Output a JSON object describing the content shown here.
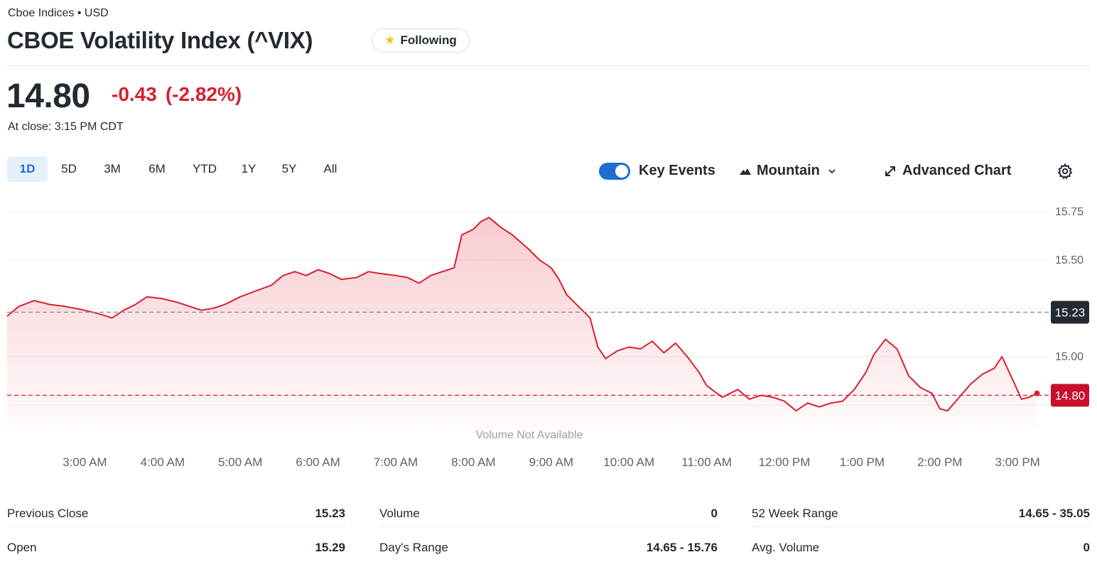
{
  "header": {
    "exchange": "Cboe Indices • USD",
    "title": "CBOE Volatility Index (^VIX)",
    "follow_label": "Following"
  },
  "quote": {
    "price": "14.80",
    "change": "-0.43",
    "change_pct": "(-2.82%)",
    "close_time": "At close: 3:15 PM CDT"
  },
  "range_tabs": [
    "1D",
    "5D",
    "3M",
    "6M",
    "YTD",
    "1Y",
    "5Y",
    "All"
  ],
  "active_range": "1D",
  "toolbar": {
    "key_events": "Key Events",
    "chart_type": "Mountain",
    "advanced": "Advanced Chart"
  },
  "colors": {
    "line": "#d6212f",
    "accent": "#1c6ed1",
    "prev_close_badge": "#232a31",
    "price_badge": "#c8102e"
  },
  "chart_data": {
    "type": "area",
    "x_ticks": [
      "3:00 AM",
      "4:00 AM",
      "5:00 AM",
      "6:00 AM",
      "7:00 AM",
      "8:00 AM",
      "9:00 AM",
      "10:00 AM",
      "11:00 AM",
      "12:00 PM",
      "1:00 PM",
      "2:00 PM",
      "3:00 PM"
    ],
    "y_ticks": [
      "15.75",
      "15.50",
      "15.00"
    ],
    "ylim": [
      14.6,
      15.8
    ],
    "previous_close": 15.23,
    "previous_close_label": "15.23",
    "last_price": 14.8,
    "last_price_label": "14.80",
    "volume_note": "Volume Not Available",
    "x_start_hour": 2.0,
    "x_end_hour": 15.25,
    "series": [
      {
        "points": [
          [
            2.0,
            15.21
          ],
          [
            2.15,
            15.26
          ],
          [
            2.35,
            15.29
          ],
          [
            2.55,
            15.27
          ],
          [
            2.75,
            15.26
          ],
          [
            3.0,
            15.24
          ],
          [
            3.2,
            15.22
          ],
          [
            3.35,
            15.2
          ],
          [
            3.5,
            15.24
          ],
          [
            3.65,
            15.27
          ],
          [
            3.8,
            15.31
          ],
          [
            4.0,
            15.3
          ],
          [
            4.2,
            15.28
          ],
          [
            4.35,
            15.26
          ],
          [
            4.5,
            15.24
          ],
          [
            4.65,
            15.25
          ],
          [
            4.8,
            15.27
          ],
          [
            5.0,
            15.31
          ],
          [
            5.2,
            15.34
          ],
          [
            5.4,
            15.37
          ],
          [
            5.55,
            15.42
          ],
          [
            5.7,
            15.44
          ],
          [
            5.85,
            15.42
          ],
          [
            6.0,
            15.45
          ],
          [
            6.15,
            15.43
          ],
          [
            6.3,
            15.4
          ],
          [
            6.5,
            15.41
          ],
          [
            6.65,
            15.44
          ],
          [
            6.8,
            15.43
          ],
          [
            7.0,
            15.42
          ],
          [
            7.15,
            15.41
          ],
          [
            7.3,
            15.38
          ],
          [
            7.45,
            15.42
          ],
          [
            7.6,
            15.44
          ],
          [
            7.75,
            15.46
          ],
          [
            7.85,
            15.63
          ],
          [
            8.0,
            15.66
          ],
          [
            8.1,
            15.7
          ],
          [
            8.2,
            15.72
          ],
          [
            8.35,
            15.67
          ],
          [
            8.5,
            15.63
          ],
          [
            8.7,
            15.56
          ],
          [
            8.85,
            15.5
          ],
          [
            9.0,
            15.46
          ],
          [
            9.1,
            15.4
          ],
          [
            9.2,
            15.32
          ],
          [
            9.3,
            15.28
          ],
          [
            9.4,
            15.24
          ],
          [
            9.5,
            15.2
          ],
          [
            9.6,
            15.05
          ],
          [
            9.7,
            14.99
          ],
          [
            9.85,
            15.03
          ],
          [
            10.0,
            15.05
          ],
          [
            10.15,
            15.04
          ],
          [
            10.3,
            15.08
          ],
          [
            10.45,
            15.02
          ],
          [
            10.6,
            15.07
          ],
          [
            10.75,
            15.0
          ],
          [
            10.9,
            14.92
          ],
          [
            11.0,
            14.85
          ],
          [
            11.2,
            14.79
          ],
          [
            11.4,
            14.83
          ],
          [
            11.55,
            14.78
          ],
          [
            11.7,
            14.8
          ],
          [
            11.85,
            14.79
          ],
          [
            12.0,
            14.77
          ],
          [
            12.15,
            14.72
          ],
          [
            12.3,
            14.76
          ],
          [
            12.45,
            14.74
          ],
          [
            12.6,
            14.76
          ],
          [
            12.75,
            14.77
          ],
          [
            12.9,
            14.83
          ],
          [
            13.05,
            14.92
          ],
          [
            13.15,
            15.01
          ],
          [
            13.3,
            15.09
          ],
          [
            13.45,
            15.04
          ],
          [
            13.6,
            14.9
          ],
          [
            13.75,
            14.84
          ],
          [
            13.9,
            14.81
          ],
          [
            14.0,
            14.73
          ],
          [
            14.1,
            14.72
          ],
          [
            14.25,
            14.79
          ],
          [
            14.4,
            14.86
          ],
          [
            14.55,
            14.91
          ],
          [
            14.7,
            14.94
          ],
          [
            14.8,
            15.0
          ],
          [
            14.95,
            14.87
          ],
          [
            15.05,
            14.78
          ],
          [
            15.15,
            14.79
          ],
          [
            15.25,
            14.81
          ]
        ]
      }
    ]
  },
  "stats": [
    [
      {
        "label": "Previous Close",
        "value": "15.23"
      },
      {
        "label": "Open",
        "value": "15.29"
      }
    ],
    [
      {
        "label": "Volume",
        "value": "0"
      },
      {
        "label": "Day's Range",
        "value": "14.65 - 15.76"
      }
    ],
    [
      {
        "label": "52 Week Range",
        "value": "14.65 - 35.05"
      },
      {
        "label": "Avg. Volume",
        "value": "0"
      }
    ]
  ]
}
